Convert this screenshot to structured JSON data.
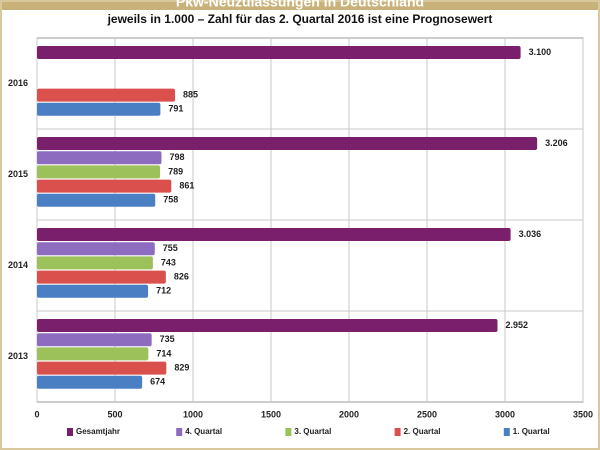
{
  "chart_data": {
    "type": "barh",
    "title": "Pkw-Neuzulassungen in Deutschland",
    "subtitle": "jeweils in 1.000 – Zahl für das 2. Quartal 2016 ist eine Prognosewert",
    "categories": [
      "2016",
      "2015",
      "2014",
      "2013"
    ],
    "series": [
      {
        "name": "Gesamtjahr",
        "color": "#7a1f6c",
        "values": [
          3100,
          3206,
          3036,
          2952
        ],
        "value_labels": [
          "3.100",
          "3.206",
          "3.036",
          "2.952"
        ]
      },
      {
        "name": "4. Quartal",
        "color": "#8d6cc0",
        "values": [
          null,
          798,
          755,
          735
        ]
      },
      {
        "name": "3. Quartal",
        "color": "#9dc15a",
        "values": [
          null,
          789,
          743,
          714
        ]
      },
      {
        "name": "2. Quartal",
        "color": "#d9504c",
        "values": [
          885,
          861,
          826,
          829
        ]
      },
      {
        "name": "1. Quartal",
        "color": "#4a7fc4",
        "values": [
          791,
          758,
          712,
          674
        ]
      }
    ],
    "xlim": [
      0,
      3500
    ],
    "xticks": [
      0,
      500,
      1000,
      1500,
      2000,
      2500,
      3000,
      3500
    ],
    "grid": true
  }
}
